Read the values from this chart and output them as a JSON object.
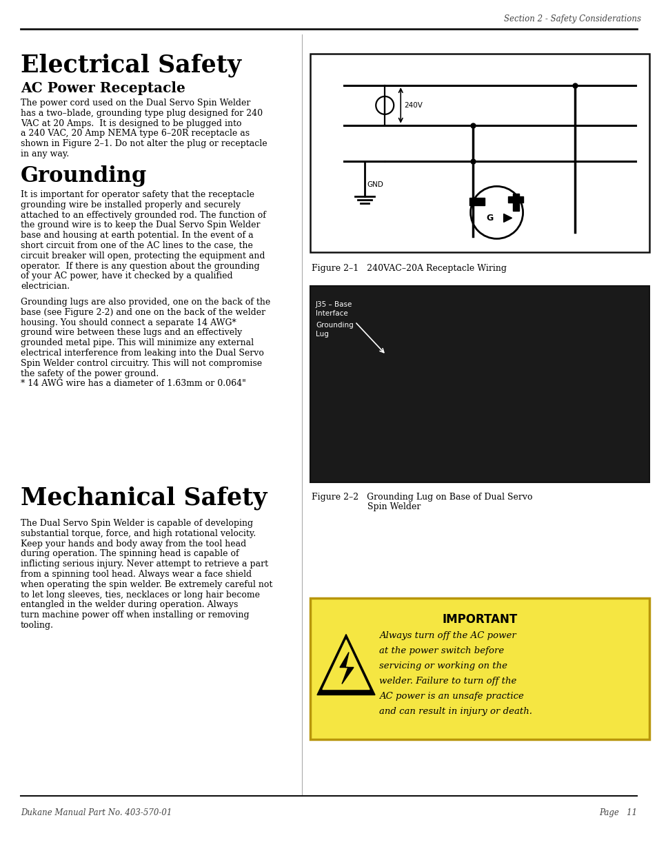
{
  "page_header_right": "Section 2 - Safety Considerations",
  "title_electrical": "Electrical Safety",
  "subtitle_ac": "AC Power Receptacle",
  "title_grounding": "Grounding",
  "title_mechanical": "Mechanical Safety",
  "fig1_caption": "Figure 2–1   240VAC–20A Receptacle Wiring",
  "fig2_caption_line1": "Figure 2–2   Grounding Lug on Base of Dual Servo",
  "fig2_caption_line2": "Spin Welder",
  "important_title": "IMPORTANT",
  "footer_left": "Dukane Manual Part No. 403-570-01",
  "footer_right": "Page   11",
  "bg_color": "#ffffff",
  "text_color": "#000000",
  "important_bg": "#f5e642",
  "ac_lines": [
    "The power cord used on the Dual Servo Spin Welder",
    "has a two–blade, grounding type plug designed for 240",
    "VAC at 20 Amps.  It is designed to be plugged into",
    "a 240 VAC, 20 Amp NEMA type 6–20R receptacle as",
    "shown in Figure 2–1. Do not alter the plug or receptacle",
    "in any way."
  ],
  "g1_lines": [
    "It is important for operator safety that the receptacle",
    "grounding wire be installed properly and securely",
    "attached to an effectively grounded rod. The function of",
    "the ground wire is to keep the Dual Servo Spin Welder",
    "base and housing at earth potential. In the event of a",
    "short circuit from one of the AC lines to the case, the",
    "circuit breaker will open, protecting the equipment and",
    "operator.  If there is any question about the grounding",
    "of your AC power, have it checked by a qualified",
    "electrician."
  ],
  "g2_lines": [
    "Grounding lugs are also provided, one on the back of the",
    "base (see Figure 2-2) and one on the back of the welder",
    "housing. You should connect a separate 14 AWG*",
    "ground wire between these lugs and an effectively",
    "grounded metal pipe. This will minimize any external",
    "electrical interference from leaking into the Dual Servo",
    "Spin Welder control circuitry. This will not compromise",
    "the safety of the power ground.",
    "* 14 AWG wire has a diameter of 1.63mm or 0.064\""
  ],
  "mech_lines": [
    "The Dual Servo Spin Welder is capable of developing",
    "substantial torque, force, and high rotational velocity.",
    "Keep your hands and body away from the tool head",
    "during operation. The spinning head is capable of",
    "inflicting serious injury. Never attempt to retrieve a part",
    "from a spinning tool head. Always wear a face shield",
    "when operating the spin welder. Be extremely careful not",
    "to let long sleeves, ties, necklaces or long hair become",
    "entangled in the welder during operation. Always",
    "turn machine power off when installing or removing",
    "tooling."
  ],
  "imp_lines": [
    "Always turn off the AC power",
    "at the power switch before",
    "servicing or working on the",
    "welder. Failure to turn off the",
    "AC power is an unsafe practice",
    "and can result in injury or death."
  ]
}
